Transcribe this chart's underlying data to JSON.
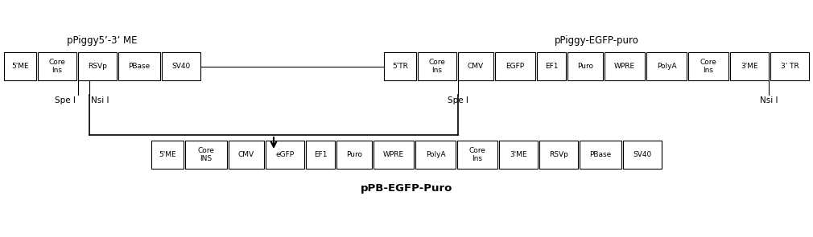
{
  "title1": "pPiggy5’-3’ ME",
  "title2": "pPiggy-EGFP-puro",
  "title3": "pPB-EGFP-Puro",
  "top_row1_labels": [
    "5'ME",
    "Core\nIns",
    "RSVp",
    "PBase",
    "SV40"
  ],
  "top_row2_labels": [
    "5'TR",
    "Core\nIns",
    "CMV",
    "EGFP",
    "EF1",
    "Puro",
    "WPRE",
    "PolyA",
    "Core\nIns",
    "3'ME",
    "3' TR"
  ],
  "bottom_row_labels": [
    "5'ME",
    "Core\nINS",
    "CMV",
    "eGFP",
    "EF1",
    "Puro",
    "WPRE",
    "PolyA",
    "Core\nIns",
    "3'ME",
    "RSVp",
    "PBase",
    "SV40"
  ],
  "bg_color": "#ffffff",
  "box_edge": "#000000",
  "text_color": "#000000",
  "font_size_box": 6.5,
  "font_size_label": 7.5,
  "font_size_title": 8.5,
  "font_size_bottom_title": 9.5
}
